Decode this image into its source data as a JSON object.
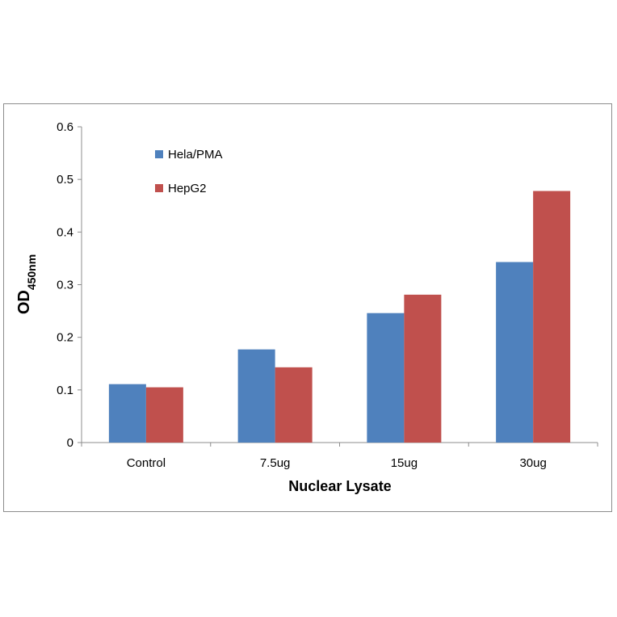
{
  "chart_data": {
    "type": "bar",
    "categories": [
      "Control",
      "7.5ug",
      "15ug",
      "30ug"
    ],
    "series": [
      {
        "name": "Hela/PMA",
        "color": "#4f81bd",
        "values": [
          0.111,
          0.177,
          0.246,
          0.343
        ]
      },
      {
        "name": "HepG2",
        "color": "#c0504d",
        "values": [
          0.105,
          0.143,
          0.281,
          0.478
        ]
      }
    ],
    "xlabel": "Nuclear Lysate",
    "ylabel_main": "OD",
    "ylabel_sub": "450nm",
    "ylim": [
      0,
      0.6
    ],
    "yticks": [
      "0",
      "0.1",
      "0.2",
      "0.3",
      "0.4",
      "0.5",
      "0.6"
    ],
    "legend_position": "top-left",
    "grid": false
  }
}
